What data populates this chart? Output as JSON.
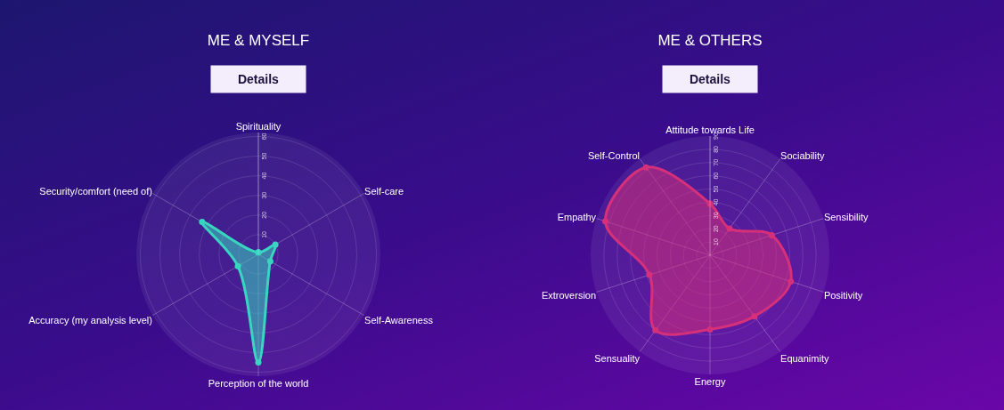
{
  "chart_data": [
    {
      "type": "radar",
      "title": "ME & MYSELF",
      "annotations": [
        "Details"
      ],
      "categories": [
        "Spirituality",
        "Self-care",
        "Self-Awareness",
        "Perception of the world",
        "Accuracy (my analysis level)",
        "Security/comfort (need of)"
      ],
      "series": [
        {
          "color": "#38d6c0",
          "values": [
            1,
            10,
            7,
            55,
            12,
            33
          ]
        }
      ],
      "ylim": [
        0,
        62
      ],
      "yticks": [
        10,
        20,
        30,
        40,
        50,
        60
      ],
      "grid": true,
      "marker": "circle"
    },
    {
      "type": "radar",
      "title": "ME & OTHERS",
      "annotations": [
        "Details"
      ],
      "categories": [
        "Attitude towards Life",
        "Sociability",
        "Sensibility",
        "Positivity",
        "Equanimity",
        "Energy",
        "Sensuality",
        "Extroversion",
        "Empathy",
        "Self-Control"
      ],
      "series": [
        {
          "color": "#d6307a",
          "values": [
            39,
            25,
            49,
            64,
            57,
            56,
            70,
            48,
            83,
            82
          ]
        }
      ],
      "ylim": [
        0,
        90
      ],
      "yticks": [
        10,
        20,
        30,
        40,
        50,
        60,
        70,
        80,
        90
      ],
      "grid": true,
      "marker": "circle"
    }
  ]
}
